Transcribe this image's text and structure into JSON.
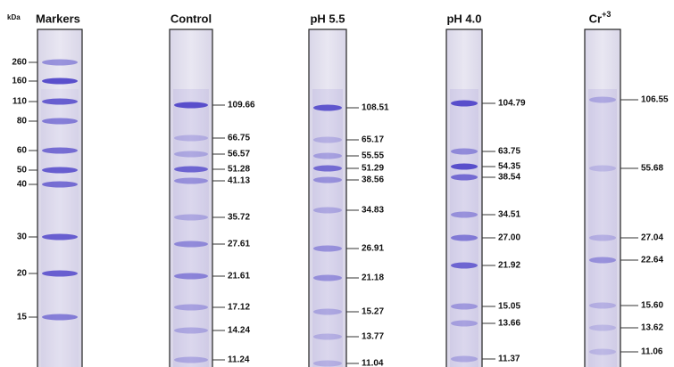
{
  "unit": "kDa",
  "lanes": [
    {
      "title": "Markers",
      "labels": [
        "260",
        "160",
        "110",
        "80",
        "60",
        "50",
        "40",
        "30",
        "20",
        "15"
      ]
    },
    {
      "title": "Control",
      "labels": [
        "109.66",
        "66.75",
        "56.57",
        "51.28",
        "41.13",
        "35.72",
        "27.61",
        "21.61",
        "17.12",
        "14.24",
        "11.24"
      ]
    },
    {
      "title": "pH 5.5",
      "labels": [
        "108.51",
        "65.17",
        "55.55",
        "51.29",
        "38.56",
        "34.83",
        "26.91",
        "21.18",
        "15.27",
        "13.77",
        "11.04"
      ]
    },
    {
      "title": "pH 4.0",
      "labels": [
        "104.79",
        "63.75",
        "54.35",
        "38.54",
        "34.51",
        "27.00",
        "21.92",
        "15.05",
        "13.66",
        "11.37"
      ]
    },
    {
      "title": "Cr",
      "title_sup": "+3",
      "labels": [
        "106.55",
        "55.68",
        "27.04",
        "22.64",
        "15.60",
        "13.62",
        "11.06"
      ]
    }
  ]
}
